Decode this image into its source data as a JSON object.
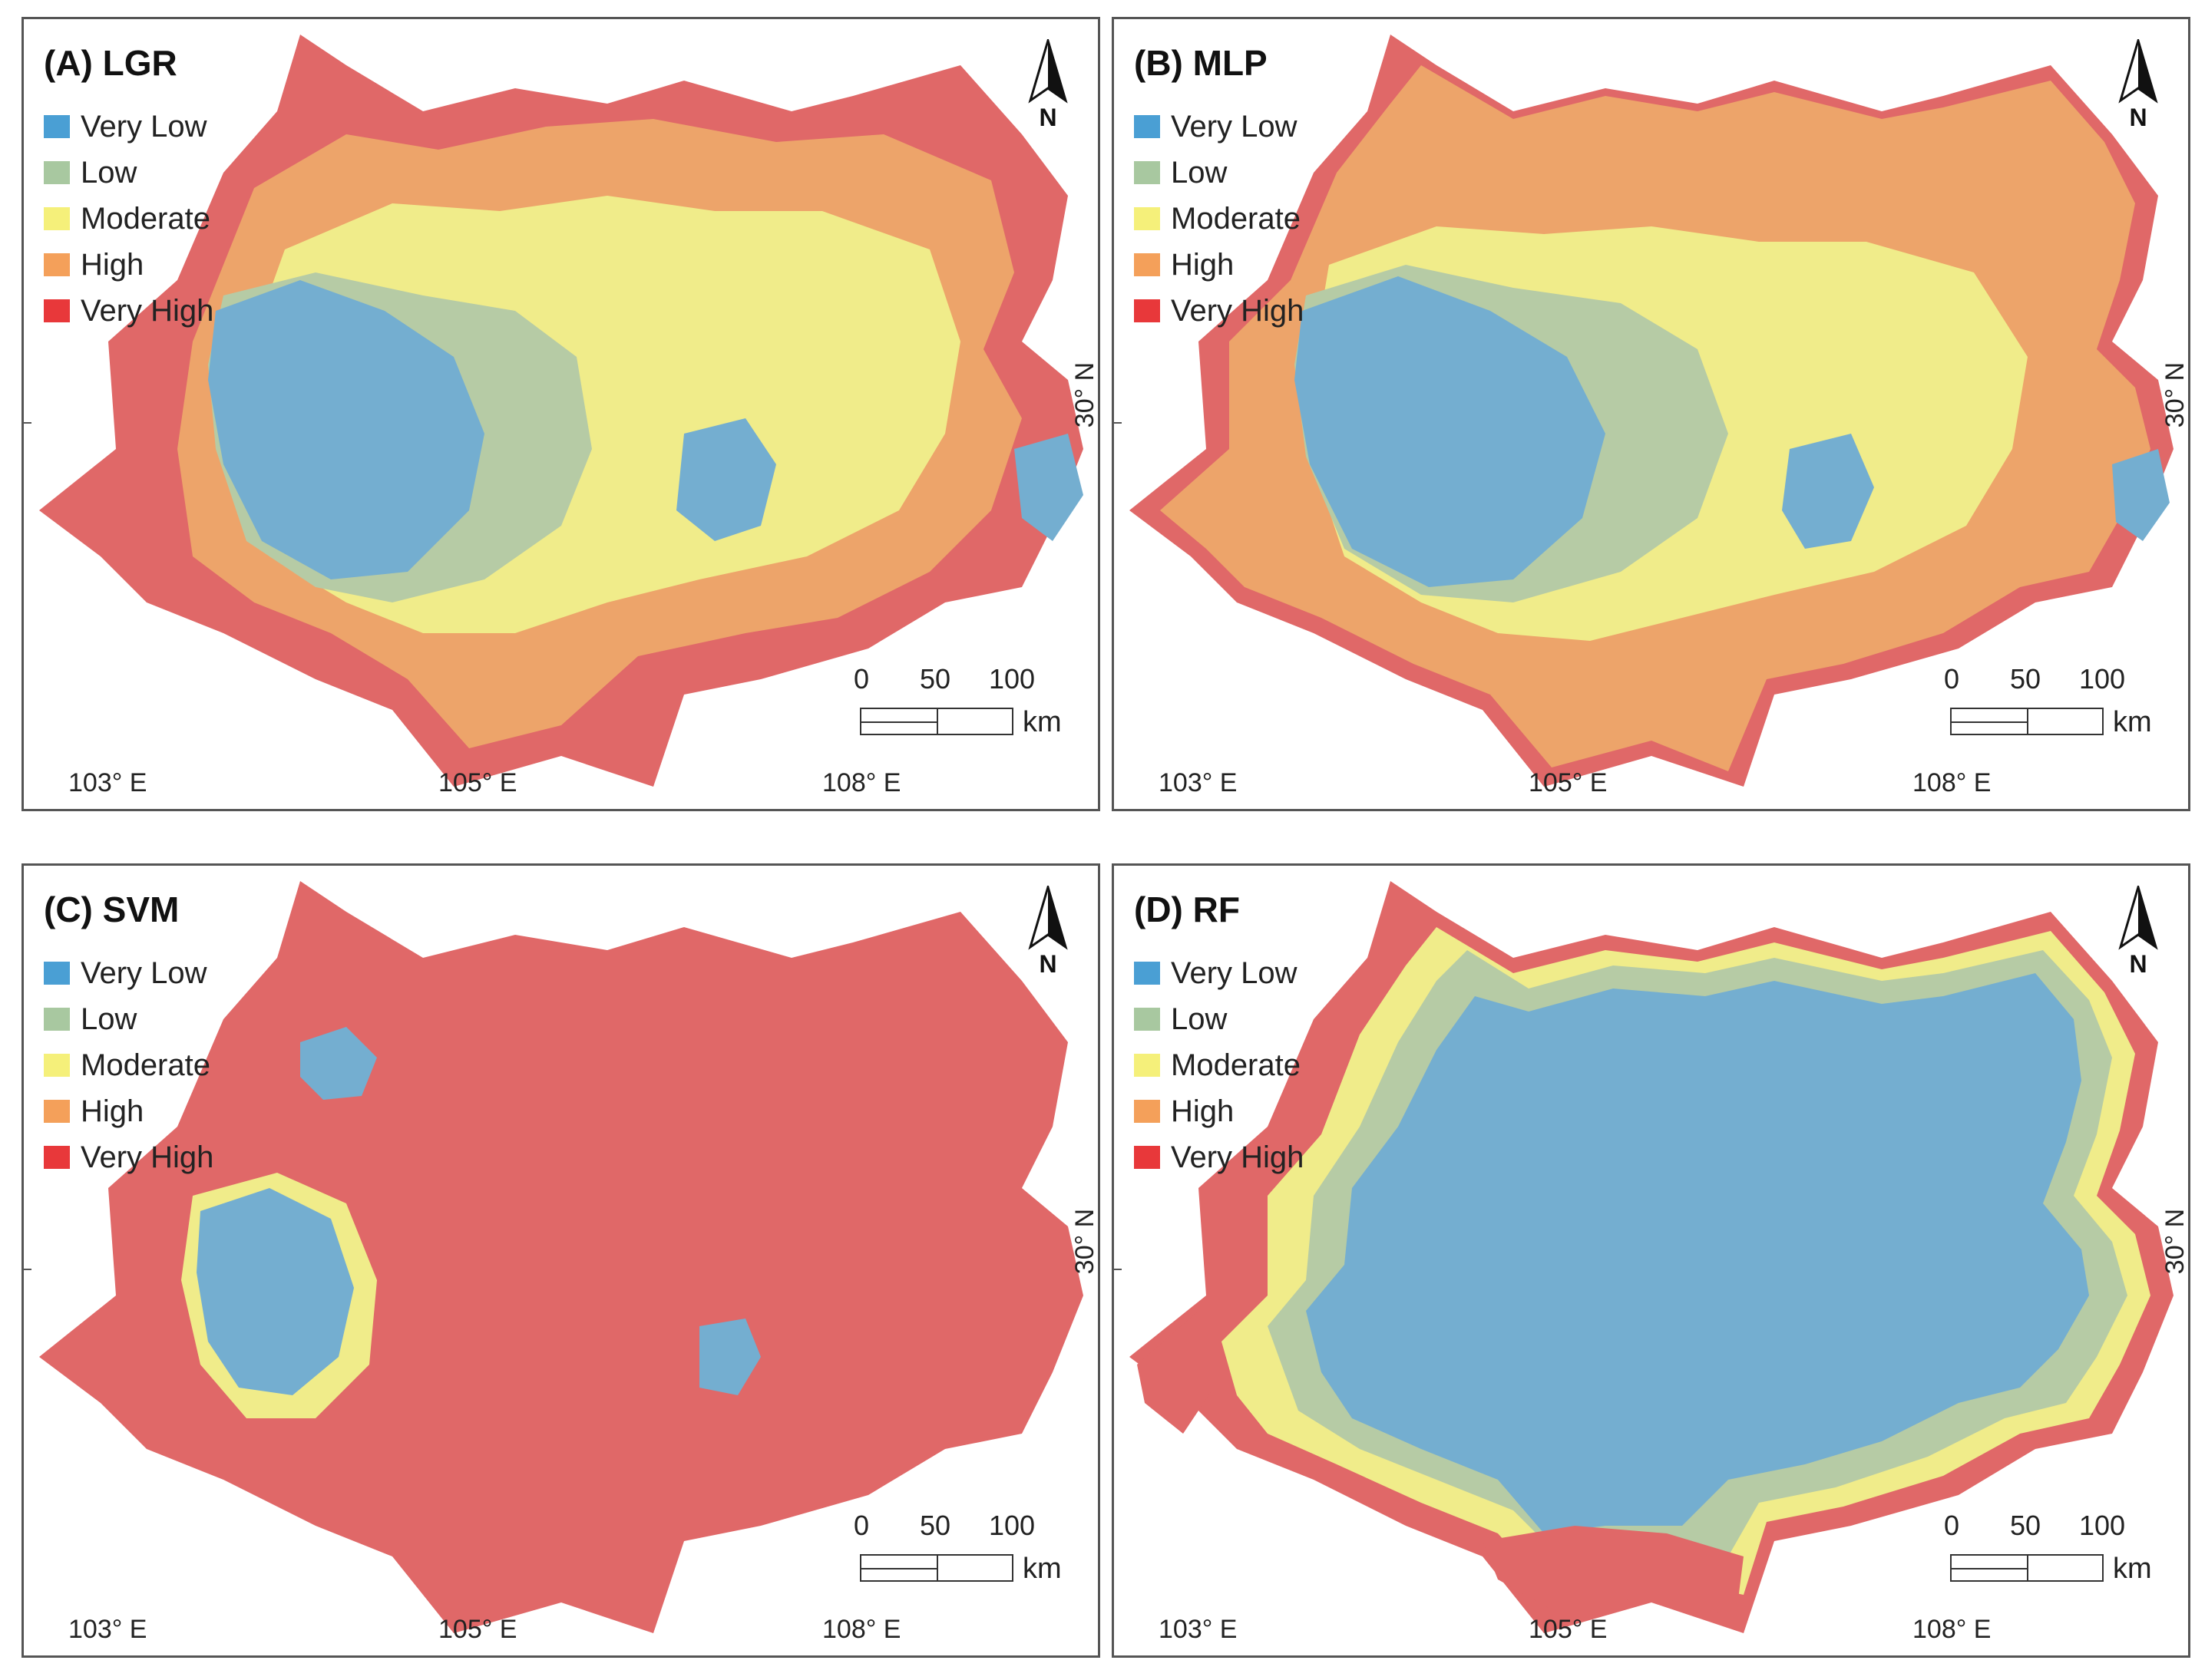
{
  "legend": {
    "classes": [
      {
        "label": "Very Low",
        "color": "#4a9fd4"
      },
      {
        "label": "Low",
        "color": "#a8c8a0"
      },
      {
        "label": "Moderate",
        "color": "#f5f07a"
      },
      {
        "label": "High",
        "color": "#f4a05a"
      },
      {
        "label": "Very High",
        "color": "#e8383a"
      }
    ]
  },
  "map_colors": {
    "very_low": "#74aed0",
    "low": "#b6cba5",
    "moderate": "#f0ec8a",
    "high": "#eda46a",
    "very_high": "#e06868"
  },
  "north_arrow": {
    "letter": "N",
    "icon": "north-arrow-icon"
  },
  "scale_bar": {
    "labels": [
      "0",
      "50",
      "100"
    ],
    "unit": "km"
  },
  "axes": {
    "longitude_labels": [
      "103° E",
      "105° E",
      "108° E"
    ],
    "latitude_label": "30° N"
  },
  "panels": [
    {
      "id": "A",
      "title": "(A) LGR",
      "dominant": "mixed"
    },
    {
      "id": "B",
      "title": "(B) MLP",
      "dominant": "high"
    },
    {
      "id": "C",
      "title": "(C) SVM",
      "dominant": "very_high"
    },
    {
      "id": "D",
      "title": "(D) RF",
      "dominant": "very_low"
    }
  ]
}
